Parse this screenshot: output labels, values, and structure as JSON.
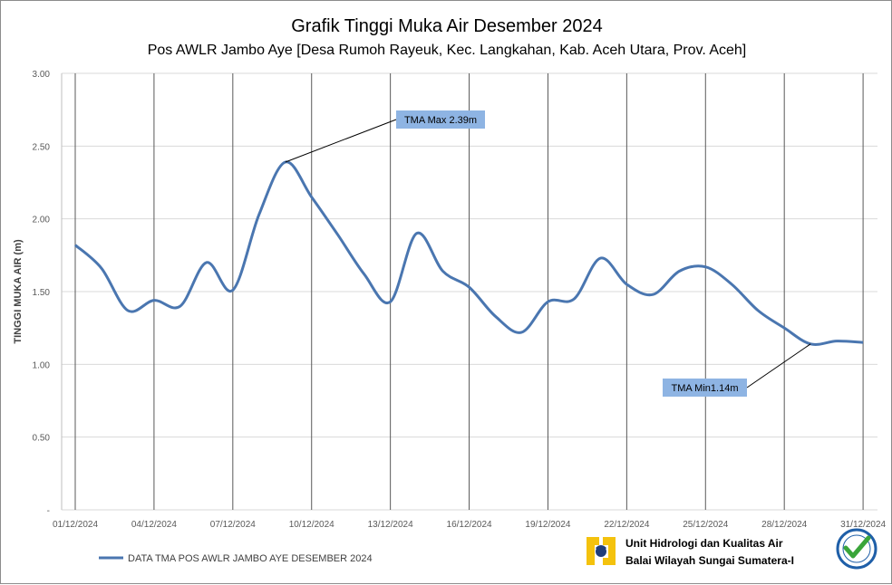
{
  "chart_data": {
    "type": "line",
    "title": "Grafik Tinggi Muka Air Desember 2024",
    "subtitle": "Pos AWLR Jambo Aye [Desa Rumoh Rayeuk, Kec. Langkahan, Kab. Aceh Utara, Prov. Aceh]",
    "ylabel": "TINGGI MUKA AIR (m)",
    "xlabel": "",
    "ylim": [
      0,
      3.0
    ],
    "y_ticks": [
      "3.00",
      "2.50",
      "2.00",
      "1.50",
      "1.00",
      "0.50",
      "-"
    ],
    "y_tick_values": [
      3.0,
      2.5,
      2.0,
      1.5,
      1.0,
      0.5,
      0
    ],
    "x_ticks": [
      "01/12/2024",
      "04/12/2024",
      "07/12/2024",
      "10/12/2024",
      "13/12/2024",
      "16/12/2024",
      "19/12/2024",
      "22/12/2024",
      "25/12/2024",
      "28/12/2024",
      "31/12/2024"
    ],
    "grid": true,
    "legend_position": "bottom-left",
    "series": [
      {
        "name": "DATA TMA POS AWLR JAMBO AYE DESEMBER 2024",
        "color": "#4a76b0",
        "x": [
          "01/12/2024",
          "02/12/2024",
          "03/12/2024",
          "04/12/2024",
          "05/12/2024",
          "06/12/2024",
          "07/12/2024",
          "08/12/2024",
          "09/12/2024",
          "10/12/2024",
          "11/12/2024",
          "12/12/2024",
          "13/12/2024",
          "14/12/2024",
          "15/12/2024",
          "16/12/2024",
          "17/12/2024",
          "18/12/2024",
          "19/12/2024",
          "20/12/2024",
          "21/12/2024",
          "22/12/2024",
          "23/12/2024",
          "24/12/2024",
          "25/12/2024",
          "26/12/2024",
          "27/12/2024",
          "28/12/2024",
          "29/12/2024",
          "30/12/2024",
          "31/12/2024"
        ],
        "values": [
          1.82,
          1.66,
          1.37,
          1.44,
          1.4,
          1.7,
          1.51,
          2.03,
          2.39,
          2.15,
          1.89,
          1.62,
          1.43,
          1.9,
          1.64,
          1.53,
          1.33,
          1.22,
          1.43,
          1.45,
          1.73,
          1.55,
          1.48,
          1.64,
          1.67,
          1.55,
          1.37,
          1.25,
          1.14,
          1.16,
          1.15
        ]
      }
    ],
    "annotations": [
      {
        "text": "TMA Max 2.39m",
        "x": "09/12/2024",
        "y": 2.39
      },
      {
        "text": "TMA Min1.14m",
        "x": "29/12/2024",
        "y": 1.14
      }
    ]
  },
  "footer": {
    "org_line1": "Unit Hidrologi dan Kualitas Air",
    "org_line2": "Balai Wilayah Sungai Sumatera-I",
    "logo_icon": "pu-logo-icon",
    "cert_icon": "iso-certified-icon"
  },
  "colors": {
    "series": "#4a76b0",
    "callout_fill": "#8eb4e3",
    "grid": "#d9d9d9",
    "vgrid": "#595959"
  }
}
